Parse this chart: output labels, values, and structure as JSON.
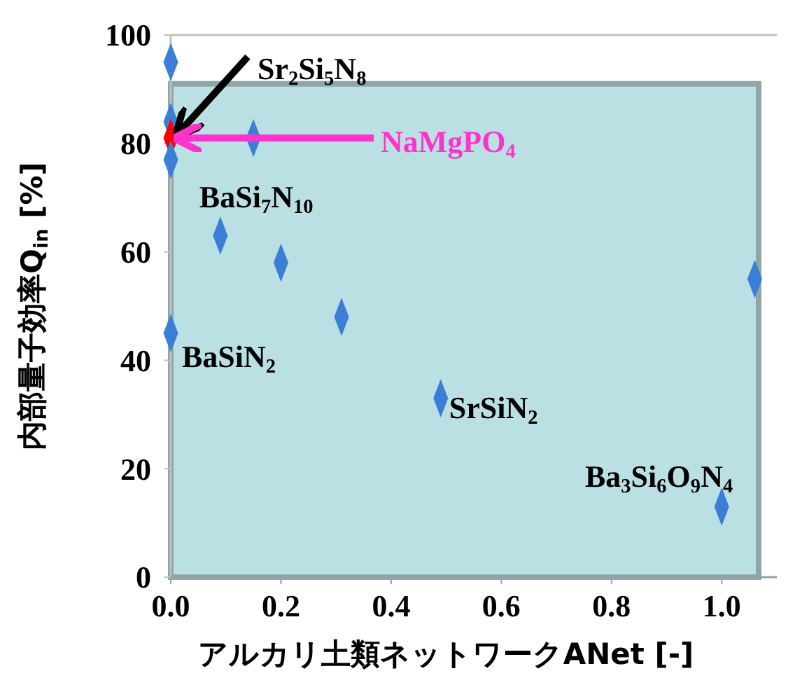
{
  "chart_data": {
    "type": "scatter",
    "xlabel": "アルカリ土類ネットワークANet [-]",
    "ylabel": "内部量子効率Q$_{in}$ [%]",
    "x": [
      0,
      0,
      0,
      0,
      0.15,
      0.09,
      0.2,
      0.31,
      0,
      0.49,
      1.0,
      1.06
    ],
    "values": [
      95,
      84,
      81,
      77,
      81,
      63,
      58,
      48,
      45,
      33,
      13,
      55
    ],
    "colors": [
      "#3a7fd5",
      "#3a7fd5",
      "#ff0000",
      "#3a7fd5",
      "#3a7fd5",
      "#3a7fd5",
      "#3a7fd5",
      "#3a7fd5",
      "#3a7fd5",
      "#3a7fd5",
      "#3a7fd5",
      "#3a7fd5"
    ],
    "marker": "diamond",
    "xlim": [
      0,
      1.1
    ],
    "xticks": [
      {
        "value": 0,
        "label": "0.0"
      },
      {
        "value": 0.2,
        "label": "0.2"
      },
      {
        "value": 0.4,
        "label": "0.4"
      },
      {
        "value": 0.6,
        "label": "0.6"
      },
      {
        "value": 0.8,
        "label": "0.8"
      },
      {
        "value": 1.0,
        "label": "1.0"
      }
    ],
    "ylim": [
      0,
      100
    ],
    "yticks": [
      0,
      20,
      40,
      60,
      80,
      100
    ],
    "annotations": [
      {
        "text": "Sr$_{2}$Si$_{5}$N$_{8}$",
        "x": 0,
        "y": 81
      },
      {
        "text": "NaMgPO$_{4}$",
        "x": 0,
        "y": 81
      },
      {
        "text": "BaSi$_{7}$N$_{10}$",
        "x": 0.09,
        "y": 63
      },
      {
        "text": "BaSiN$_{2}$",
        "x": 0,
        "y": 45
      },
      {
        "text": "SrSiN$_{2}$",
        "x": 0.49,
        "y": 33
      },
      {
        "text": "Ba$_{3}$Si$_{6}$O$_{9}$N$_{4}$",
        "x": 1.0,
        "y": 13
      }
    ]
  }
}
